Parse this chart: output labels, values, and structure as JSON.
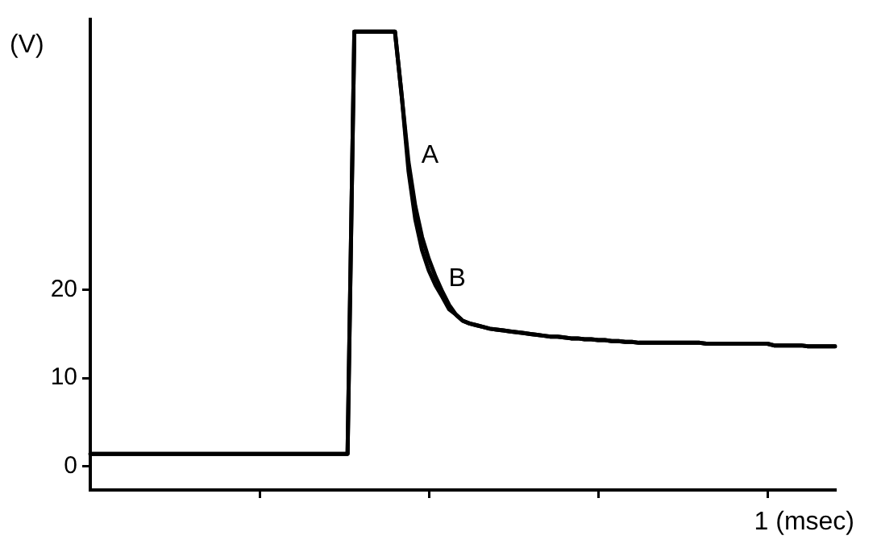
{
  "chart_data": {
    "type": "line",
    "ylabel": "(V)",
    "categories": [
      null,
      null,
      null,
      null,
      null,
      null,
      null,
      null,
      null,
      null,
      null,
      null,
      null,
      null,
      null,
      null,
      null,
      null,
      null,
      null,
      null,
      null,
      null,
      null,
      null,
      null,
      null,
      null,
      null,
      null,
      null,
      null,
      null,
      null,
      null,
      null,
      null,
      null,
      null,
      null,
      null,
      null,
      null,
      null,
      null,
      null,
      null,
      null,
      null,
      null,
      null,
      null,
      null,
      null,
      null,
      null,
      null,
      null,
      null,
      null,
      null,
      null,
      null,
      null,
      null,
      null,
      null,
      null,
      null,
      null,
      null,
      null,
      null,
      null,
      null,
      null,
      null,
      null,
      null,
      null,
      null,
      null,
      null,
      null,
      null,
      null,
      null,
      null,
      null,
      null,
      null,
      null,
      null,
      null,
      null,
      null,
      null,
      null,
      null,
      null,
      null,
      null,
      null,
      null,
      null,
      null,
      null,
      null,
      null,
      null,
      null
    ],
    "ylim": [
      -2.7,
      50.7
    ],
    "yticks": [
      0,
      10,
      20
    ],
    "grid": false,
    "marker": "none",
    "line_style": "solid",
    "series": [
      {
        "name": "A",
        "color": "#000000",
        "values": [
          1.4,
          1.4,
          1.4,
          1.4,
          1.4,
          1.4,
          1.4,
          1.4,
          1.4,
          1.4,
          1.4,
          1.4,
          1.4,
          1.4,
          1.4,
          1.4,
          1.4,
          1.4,
          1.4,
          1.4,
          1.4,
          1.4,
          1.4,
          1.4,
          1.4,
          1.4,
          1.4,
          1.4,
          1.4,
          1.4,
          1.4,
          1.4,
          1.4,
          1.4,
          1.4,
          1.4,
          1.4,
          1.4,
          1.4,
          49.3,
          49.3,
          49.3,
          49.3,
          49.3,
          49.3,
          49.3,
          42,
          34.5,
          29.5,
          26,
          23.5,
          21.5,
          19.8,
          18.3,
          17.2,
          16.5,
          16.2,
          16.0,
          15.8,
          15.6,
          15.5,
          15.4,
          15.3,
          15.2,
          15.1,
          15.0,
          14.9,
          14.8,
          14.7,
          14.7,
          14.6,
          14.5,
          14.5,
          14.4,
          14.4,
          14.3,
          14.3,
          14.2,
          14.2,
          14.1,
          14.1,
          14.0,
          14.0,
          14.0,
          14.0,
          14.0,
          14.0,
          14.0,
          14.0,
          14.0,
          14.0,
          13.9,
          13.9,
          13.9,
          13.9,
          13.9,
          13.9,
          13.9,
          13.9,
          13.9,
          13.9,
          13.7,
          13.7,
          13.7,
          13.7,
          13.7,
          13.6,
          13.6,
          13.6,
          13.6,
          13.6
        ]
      },
      {
        "name": "B",
        "color": "#000000",
        "values": [
          1.4,
          1.4,
          1.4,
          1.4,
          1.4,
          1.4,
          1.4,
          1.4,
          1.4,
          1.4,
          1.4,
          1.4,
          1.4,
          1.4,
          1.4,
          1.4,
          1.4,
          1.4,
          1.4,
          1.4,
          1.4,
          1.4,
          1.4,
          1.4,
          1.4,
          1.4,
          1.4,
          1.4,
          1.4,
          1.4,
          1.4,
          1.4,
          1.4,
          1.4,
          1.4,
          1.4,
          1.4,
          1.4,
          1.4,
          49.3,
          49.3,
          49.3,
          49.3,
          49.3,
          49.3,
          49.3,
          42,
          33.5,
          28,
          24.5,
          22.2,
          20.5,
          19.2,
          17.8,
          17.2,
          16.5,
          16.2,
          16.0,
          15.8,
          15.6,
          15.5,
          15.4,
          15.3,
          15.2,
          15.1,
          15.0,
          14.9,
          14.8,
          14.7,
          14.7,
          14.6,
          14.5,
          14.5,
          14.4,
          14.4,
          14.3,
          14.3,
          14.2,
          14.2,
          14.1,
          14.1,
          14.0,
          14.0,
          14.0,
          14.0,
          14.0,
          14.0,
          14.0,
          14.0,
          14.0,
          14.0,
          13.9,
          13.9,
          13.9,
          13.9,
          13.9,
          13.9,
          13.9,
          13.9,
          13.9,
          13.9,
          13.7,
          13.7,
          13.7,
          13.7,
          13.7,
          13.6,
          13.6,
          13.6,
          13.6,
          13.6
        ]
      }
    ],
    "annotations": [
      "1 (msec)"
    ]
  }
}
